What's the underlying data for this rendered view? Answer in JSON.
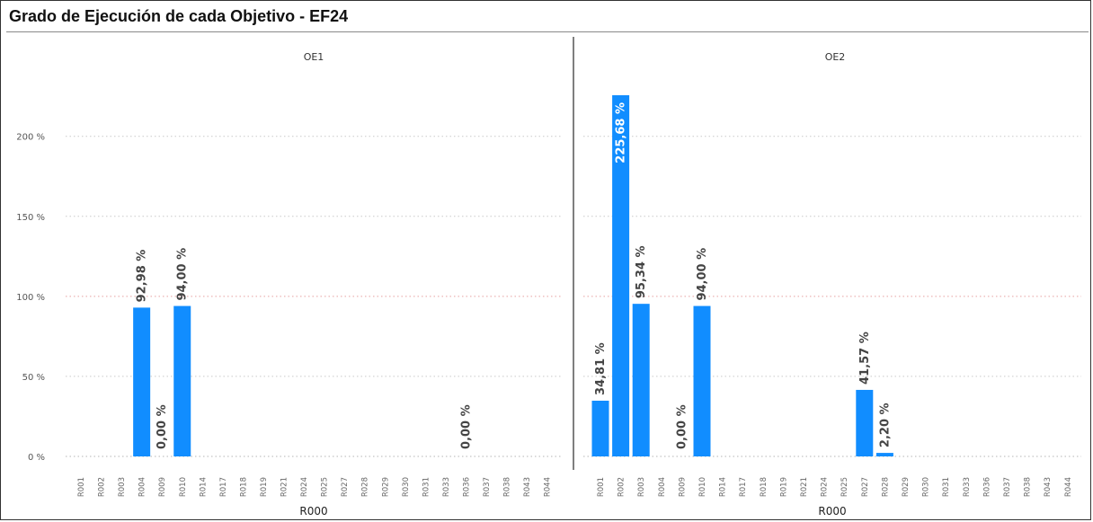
{
  "page": {
    "title": "Grado de Ejecución de cada Objetivo - EF24"
  },
  "chart_data": {
    "type": "bar",
    "ylim": [
      0,
      225.68
    ],
    "yticks": [
      0,
      50,
      100,
      150,
      200
    ],
    "ytick_labels": [
      "0 %",
      "50 %",
      "100 %",
      "150 %",
      "200 %"
    ],
    "xlabel": "R000",
    "bar_color": "#118DFF",
    "gridline_color": "#e8a0a0",
    "grid": true,
    "panels": [
      {
        "name": "OE1",
        "categories": [
          "R001",
          "R002",
          "R003",
          "R004",
          "R009",
          "R010",
          "R014",
          "R017",
          "R018",
          "R019",
          "R021",
          "R024",
          "R025",
          "R027",
          "R028",
          "R029",
          "R030",
          "R031",
          "R033",
          "R036",
          "R037",
          "R038",
          "R043",
          "R044"
        ],
        "values": [
          null,
          null,
          null,
          92.98,
          0,
          94.0,
          null,
          null,
          null,
          null,
          null,
          null,
          null,
          null,
          null,
          null,
          null,
          null,
          null,
          0,
          null,
          null,
          null,
          null
        ],
        "labels": [
          null,
          null,
          null,
          "92,98 %",
          "0,00 %",
          "94,00 %",
          null,
          null,
          null,
          null,
          null,
          null,
          null,
          null,
          null,
          null,
          null,
          null,
          null,
          "0,00 %",
          null,
          null,
          null,
          null
        ]
      },
      {
        "name": "OE2",
        "categories": [
          "R001",
          "R002",
          "R003",
          "R004",
          "R009",
          "R010",
          "R014",
          "R017",
          "R018",
          "R019",
          "R021",
          "R024",
          "R025",
          "R027",
          "R028",
          "R029",
          "R030",
          "R031",
          "R033",
          "R036",
          "R037",
          "R038",
          "R043",
          "R044"
        ],
        "values": [
          34.81,
          225.68,
          95.34,
          null,
          0,
          94.0,
          null,
          null,
          null,
          null,
          null,
          null,
          null,
          41.57,
          2.2,
          null,
          null,
          null,
          null,
          null,
          null,
          null,
          null,
          null
        ],
        "labels": [
          "34,81 %",
          "225,68 %",
          "95,34 %",
          null,
          "0,00 %",
          "94,00 %",
          null,
          null,
          null,
          null,
          null,
          null,
          null,
          "41,57 %",
          "2,20 %",
          null,
          null,
          null,
          null,
          null,
          null,
          null,
          null,
          null
        ]
      }
    ]
  }
}
